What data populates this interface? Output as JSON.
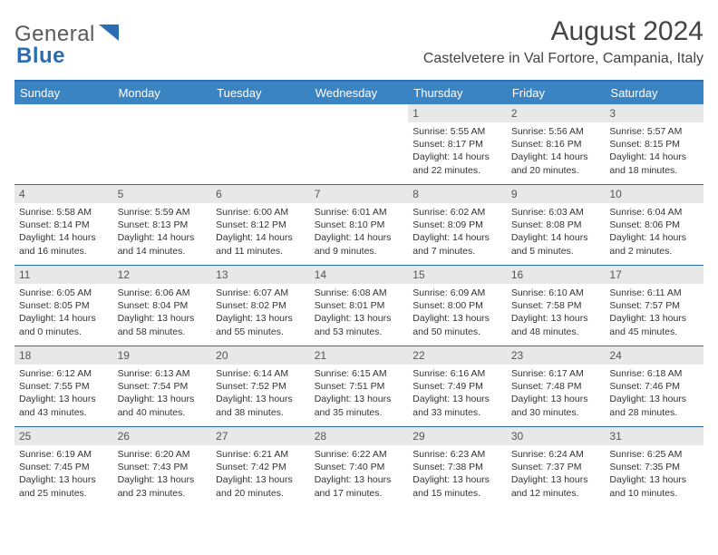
{
  "logo": {
    "text1": "General",
    "text2": "Blue"
  },
  "title": "August 2024",
  "location": "Castelvetere in Val Fortore, Campania, Italy",
  "colors": {
    "header_bg": "#3b84c4",
    "header_border": "#2a6db3",
    "daynum_bg": "#e8e8e8",
    "text": "#333333"
  },
  "day_names": [
    "Sunday",
    "Monday",
    "Tuesday",
    "Wednesday",
    "Thursday",
    "Friday",
    "Saturday"
  ],
  "weeks": [
    [
      {
        "n": "",
        "sr": "",
        "ss": "",
        "dl": ""
      },
      {
        "n": "",
        "sr": "",
        "ss": "",
        "dl": ""
      },
      {
        "n": "",
        "sr": "",
        "ss": "",
        "dl": ""
      },
      {
        "n": "",
        "sr": "",
        "ss": "",
        "dl": ""
      },
      {
        "n": "1",
        "sr": "Sunrise: 5:55 AM",
        "ss": "Sunset: 8:17 PM",
        "dl": "Daylight: 14 hours and 22 minutes."
      },
      {
        "n": "2",
        "sr": "Sunrise: 5:56 AM",
        "ss": "Sunset: 8:16 PM",
        "dl": "Daylight: 14 hours and 20 minutes."
      },
      {
        "n": "3",
        "sr": "Sunrise: 5:57 AM",
        "ss": "Sunset: 8:15 PM",
        "dl": "Daylight: 14 hours and 18 minutes."
      }
    ],
    [
      {
        "n": "4",
        "sr": "Sunrise: 5:58 AM",
        "ss": "Sunset: 8:14 PM",
        "dl": "Daylight: 14 hours and 16 minutes."
      },
      {
        "n": "5",
        "sr": "Sunrise: 5:59 AM",
        "ss": "Sunset: 8:13 PM",
        "dl": "Daylight: 14 hours and 14 minutes."
      },
      {
        "n": "6",
        "sr": "Sunrise: 6:00 AM",
        "ss": "Sunset: 8:12 PM",
        "dl": "Daylight: 14 hours and 11 minutes."
      },
      {
        "n": "7",
        "sr": "Sunrise: 6:01 AM",
        "ss": "Sunset: 8:10 PM",
        "dl": "Daylight: 14 hours and 9 minutes."
      },
      {
        "n": "8",
        "sr": "Sunrise: 6:02 AM",
        "ss": "Sunset: 8:09 PM",
        "dl": "Daylight: 14 hours and 7 minutes."
      },
      {
        "n": "9",
        "sr": "Sunrise: 6:03 AM",
        "ss": "Sunset: 8:08 PM",
        "dl": "Daylight: 14 hours and 5 minutes."
      },
      {
        "n": "10",
        "sr": "Sunrise: 6:04 AM",
        "ss": "Sunset: 8:06 PM",
        "dl": "Daylight: 14 hours and 2 minutes."
      }
    ],
    [
      {
        "n": "11",
        "sr": "Sunrise: 6:05 AM",
        "ss": "Sunset: 8:05 PM",
        "dl": "Daylight: 14 hours and 0 minutes."
      },
      {
        "n": "12",
        "sr": "Sunrise: 6:06 AM",
        "ss": "Sunset: 8:04 PM",
        "dl": "Daylight: 13 hours and 58 minutes."
      },
      {
        "n": "13",
        "sr": "Sunrise: 6:07 AM",
        "ss": "Sunset: 8:02 PM",
        "dl": "Daylight: 13 hours and 55 minutes."
      },
      {
        "n": "14",
        "sr": "Sunrise: 6:08 AM",
        "ss": "Sunset: 8:01 PM",
        "dl": "Daylight: 13 hours and 53 minutes."
      },
      {
        "n": "15",
        "sr": "Sunrise: 6:09 AM",
        "ss": "Sunset: 8:00 PM",
        "dl": "Daylight: 13 hours and 50 minutes."
      },
      {
        "n": "16",
        "sr": "Sunrise: 6:10 AM",
        "ss": "Sunset: 7:58 PM",
        "dl": "Daylight: 13 hours and 48 minutes."
      },
      {
        "n": "17",
        "sr": "Sunrise: 6:11 AM",
        "ss": "Sunset: 7:57 PM",
        "dl": "Daylight: 13 hours and 45 minutes."
      }
    ],
    [
      {
        "n": "18",
        "sr": "Sunrise: 6:12 AM",
        "ss": "Sunset: 7:55 PM",
        "dl": "Daylight: 13 hours and 43 minutes."
      },
      {
        "n": "19",
        "sr": "Sunrise: 6:13 AM",
        "ss": "Sunset: 7:54 PM",
        "dl": "Daylight: 13 hours and 40 minutes."
      },
      {
        "n": "20",
        "sr": "Sunrise: 6:14 AM",
        "ss": "Sunset: 7:52 PM",
        "dl": "Daylight: 13 hours and 38 minutes."
      },
      {
        "n": "21",
        "sr": "Sunrise: 6:15 AM",
        "ss": "Sunset: 7:51 PM",
        "dl": "Daylight: 13 hours and 35 minutes."
      },
      {
        "n": "22",
        "sr": "Sunrise: 6:16 AM",
        "ss": "Sunset: 7:49 PM",
        "dl": "Daylight: 13 hours and 33 minutes."
      },
      {
        "n": "23",
        "sr": "Sunrise: 6:17 AM",
        "ss": "Sunset: 7:48 PM",
        "dl": "Daylight: 13 hours and 30 minutes."
      },
      {
        "n": "24",
        "sr": "Sunrise: 6:18 AM",
        "ss": "Sunset: 7:46 PM",
        "dl": "Daylight: 13 hours and 28 minutes."
      }
    ],
    [
      {
        "n": "25",
        "sr": "Sunrise: 6:19 AM",
        "ss": "Sunset: 7:45 PM",
        "dl": "Daylight: 13 hours and 25 minutes."
      },
      {
        "n": "26",
        "sr": "Sunrise: 6:20 AM",
        "ss": "Sunset: 7:43 PM",
        "dl": "Daylight: 13 hours and 23 minutes."
      },
      {
        "n": "27",
        "sr": "Sunrise: 6:21 AM",
        "ss": "Sunset: 7:42 PM",
        "dl": "Daylight: 13 hours and 20 minutes."
      },
      {
        "n": "28",
        "sr": "Sunrise: 6:22 AM",
        "ss": "Sunset: 7:40 PM",
        "dl": "Daylight: 13 hours and 17 minutes."
      },
      {
        "n": "29",
        "sr": "Sunrise: 6:23 AM",
        "ss": "Sunset: 7:38 PM",
        "dl": "Daylight: 13 hours and 15 minutes."
      },
      {
        "n": "30",
        "sr": "Sunrise: 6:24 AM",
        "ss": "Sunset: 7:37 PM",
        "dl": "Daylight: 13 hours and 12 minutes."
      },
      {
        "n": "31",
        "sr": "Sunrise: 6:25 AM",
        "ss": "Sunset: 7:35 PM",
        "dl": "Daylight: 13 hours and 10 minutes."
      }
    ]
  ]
}
